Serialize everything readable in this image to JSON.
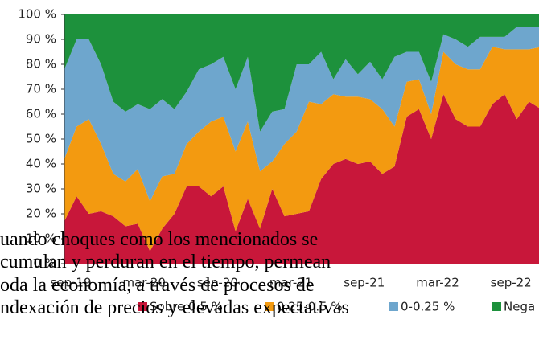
{
  "chart_data": {
    "type": "stacked_area",
    "categories": [
      "sep-19",
      null,
      null,
      null,
      null,
      null,
      "mar-20",
      null,
      null,
      null,
      null,
      null,
      "sep-20",
      null,
      null,
      null,
      null,
      null,
      "mar-21",
      null,
      null,
      null,
      null,
      null,
      "sep-21",
      null,
      null,
      null,
      null,
      null,
      "mar-22",
      null,
      null,
      null,
      null,
      null,
      "sep-22",
      null,
      null,
      null,
      null
    ],
    "series": [
      {
        "name": "Sobre 0.5 %",
        "color": "#c8173a",
        "values": [
          17,
          27,
          20,
          21,
          19,
          15,
          16,
          5,
          14,
          20,
          31,
          31,
          27,
          31,
          13,
          26,
          14,
          30,
          19,
          20,
          21,
          34,
          40,
          42,
          40,
          41,
          36,
          39,
          59,
          62,
          50,
          68,
          58,
          55,
          55,
          64,
          68,
          58,
          65,
          62,
          60
        ]
      },
      {
        "name": "0.25-0.5 %",
        "color": "#f39a10",
        "values": [
          25,
          28,
          38,
          27,
          17,
          18,
          22,
          20,
          21,
          16,
          17,
          22,
          30,
          28,
          32,
          31,
          23,
          11,
          29,
          33,
          44,
          30,
          28,
          25,
          27,
          25,
          26,
          16,
          14,
          12,
          10,
          17,
          22,
          23,
          23,
          23,
          18,
          28,
          21,
          25,
          28
        ]
      },
      {
        "name": "0-0.25 %",
        "color": "#6ea6cd",
        "values": [
          36,
          35,
          32,
          32,
          29,
          28,
          26,
          37,
          31,
          26,
          21,
          25,
          23,
          24,
          25,
          26,
          16,
          20,
          14,
          27,
          15,
          21,
          6,
          15,
          9,
          15,
          12,
          28,
          12,
          11,
          13,
          7,
          10,
          9,
          13,
          4,
          5,
          9,
          9,
          8,
          7
        ]
      },
      {
        "name": "Nega",
        "color": "#1d913c",
        "values": [
          22,
          10,
          10,
          20,
          35,
          39,
          36,
          38,
          34,
          38,
          31,
          22,
          20,
          17,
          30,
          17,
          47,
          39,
          38,
          20,
          20,
          15,
          26,
          18,
          24,
          19,
          26,
          17,
          15,
          15,
          27,
          8,
          10,
          13,
          9,
          9,
          9,
          5,
          5,
          5,
          5
        ]
      }
    ],
    "ylim": [
      0,
      100
    ],
    "yticks": [
      {
        "value": 0,
        "label": "0 %"
      },
      {
        "value": 10,
        "label": "10 %"
      },
      {
        "value": 20,
        "label": "20 %"
      },
      {
        "value": 30,
        "label": "30 %"
      },
      {
        "value": 40,
        "label": "40 %"
      },
      {
        "value": 50,
        "label": "50 %"
      },
      {
        "value": 60,
        "label": "60 %"
      },
      {
        "value": 70,
        "label": "70 %"
      },
      {
        "value": 80,
        "label": "80 %"
      },
      {
        "value": 90,
        "label": "90 %"
      },
      {
        "value": 100,
        "label": "100 %"
      }
    ]
  },
  "overlay_text": {
    "lines": [
      "uando choques como los mencionados se",
      "cumulan y perduran en el tiempo, permean",
      "oda la economía, a través de procesos de",
      "ndexación de precios y elevadas expectativas"
    ]
  }
}
